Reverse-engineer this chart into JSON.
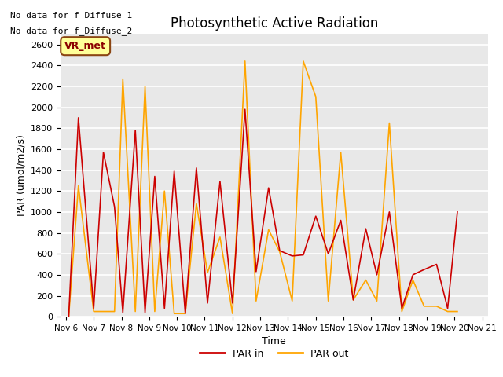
{
  "title": "Photosynthetic Active Radiation",
  "xlabel": "Time",
  "ylabel": "PAR (umol/m2/s)",
  "annotations": [
    "No data for f_Diffuse_1",
    "No data for f_Diffuse_2"
  ],
  "legend_box_label": "VR_met",
  "ylim": [
    0,
    2700
  ],
  "yticks": [
    0,
    200,
    400,
    600,
    800,
    1000,
    1200,
    1400,
    1600,
    1800,
    2000,
    2200,
    2400,
    2600
  ],
  "x_labels": [
    "Nov 6",
    "Nov 7",
    "Nov 8",
    "Nov 9",
    "Nov 10",
    "Nov 11",
    "Nov 12",
    "Nov 13",
    "Nov 14",
    "Nov 15",
    "Nov 16",
    "Nov 17",
    "Nov 18",
    "Nov 19",
    "Nov 20",
    "Nov 21"
  ],
  "color_par_in": "#cc0000",
  "color_par_out": "#ffa500",
  "bg_color": "#e8e8e8",
  "grid_color": "white",
  "legend_box_bg": "#ffff99",
  "legend_box_border": "#8B4513",
  "par_in_x": [
    0.1,
    0.45,
    1.0,
    1.35,
    1.75,
    2.05,
    2.5,
    2.85,
    3.2,
    3.55,
    3.9,
    4.3,
    4.7,
    5.1,
    5.55,
    6.0,
    6.45,
    6.85,
    7.3,
    7.7,
    8.15,
    8.55,
    9.0,
    9.45,
    9.9,
    10.35,
    10.8,
    11.2,
    11.65,
    12.1,
    12.5,
    12.9,
    13.35,
    13.75,
    14.1
  ],
  "par_in_y": [
    0,
    1900,
    80,
    1570,
    1050,
    40,
    1780,
    40,
    1340,
    80,
    1390,
    30,
    1420,
    130,
    1290,
    130,
    1980,
    430,
    1230,
    630,
    580,
    590,
    960,
    600,
    920,
    160,
    840,
    400,
    1000,
    80,
    400,
    450,
    500,
    80,
    1000
  ],
  "par_out_x": [
    0.1,
    0.45,
    1.0,
    1.35,
    1.75,
    2.05,
    2.5,
    2.85,
    3.2,
    3.55,
    3.9,
    4.3,
    4.7,
    5.1,
    5.55,
    6.0,
    6.45,
    6.85,
    7.3,
    7.7,
    8.15,
    8.55,
    9.0,
    9.45,
    9.9,
    10.35,
    10.8,
    11.2,
    11.65,
    12.1,
    12.5,
    12.9,
    13.35,
    13.75,
    14.1
  ],
  "par_out_y": [
    0,
    1250,
    50,
    50,
    50,
    2270,
    50,
    2200,
    50,
    1200,
    30,
    30,
    1080,
    420,
    760,
    30,
    2440,
    150,
    830,
    620,
    150,
    2440,
    2100,
    150,
    1570,
    160,
    350,
    150,
    1850,
    50,
    350,
    100,
    100,
    50,
    50
  ]
}
